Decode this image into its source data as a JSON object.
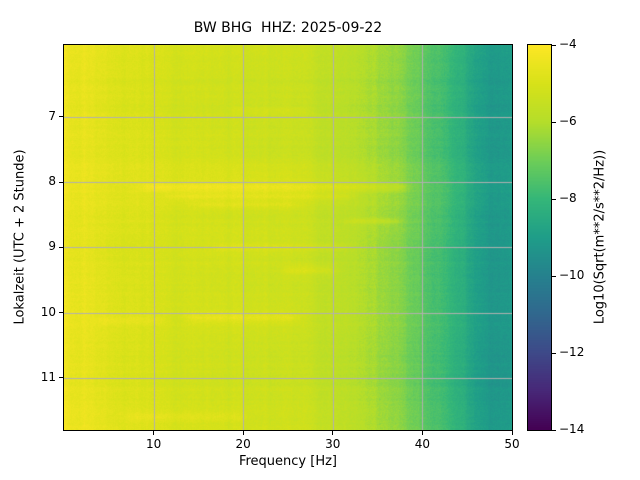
{
  "figure": {
    "background_color": "#ffffff",
    "text_color": "#000000"
  },
  "chart_data": {
    "type": "heatmap",
    "subtype": "spectrogram",
    "title": "BW BHG  HHZ: 2025-09-22",
    "xlabel": "Frequency [Hz]",
    "ylabel": "Lokalzeit (UTC + 2 Stunde)",
    "xlim": [
      0,
      50
    ],
    "time_range": [
      5.9,
      11.8
    ],
    "x_ticks": [
      10,
      20,
      30,
      40,
      50
    ],
    "y_ticks": [
      7,
      8,
      9,
      10,
      11
    ],
    "grid": true,
    "grid_color": "#b0b0b0",
    "colormap": "viridis",
    "viridis_stops": [
      "#440154",
      "#482878",
      "#3e4a89",
      "#31688e",
      "#26828e",
      "#1f9e89",
      "#35b779",
      "#6ece58",
      "#b5de2b",
      "#d8e219",
      "#fde725"
    ],
    "colorbar": {
      "label": "Log10(Sqrt(m**2/s**2/Hz))",
      "ticks": [
        -4,
        -6,
        -8,
        -10,
        -12,
        -14
      ],
      "vmin": -14,
      "vmax": -4
    },
    "value_grid": {
      "row_times": [
        6.0,
        6.5,
        7.0,
        7.5,
        8.0,
        8.5,
        9.0,
        9.5,
        10.0,
        10.5,
        11.0,
        11.5
      ],
      "col_freqs": [
        2.5,
        7.5,
        12.5,
        17.5,
        22.5,
        27.5,
        32.5,
        37.5,
        42.5,
        47.5
      ],
      "values": [
        [
          -4.5,
          -4.9,
          -5.0,
          -5.1,
          -5.2,
          -5.4,
          -5.8,
          -6.5,
          -7.8,
          -9.1
        ],
        [
          -4.6,
          -5.0,
          -5.1,
          -5.2,
          -5.3,
          -5.5,
          -5.9,
          -6.6,
          -7.9,
          -9.2
        ],
        [
          -4.6,
          -5.0,
          -5.1,
          -5.2,
          -5.3,
          -5.5,
          -5.9,
          -6.6,
          -7.9,
          -9.2
        ],
        [
          -4.6,
          -4.9,
          -5.0,
          -5.1,
          -5.3,
          -5.5,
          -5.9,
          -6.6,
          -7.9,
          -9.2
        ],
        [
          -4.5,
          -4.8,
          -4.8,
          -4.8,
          -4.9,
          -5.2,
          -5.6,
          -6.4,
          -7.7,
          -9.1
        ],
        [
          -4.6,
          -4.9,
          -5.0,
          -5.1,
          -5.2,
          -5.4,
          -5.8,
          -6.5,
          -7.8,
          -9.2
        ],
        [
          -4.6,
          -5.0,
          -5.0,
          -5.0,
          -5.1,
          -5.4,
          -5.8,
          -6.6,
          -7.9,
          -9.2
        ],
        [
          -4.6,
          -5.0,
          -5.1,
          -5.2,
          -5.3,
          -5.5,
          -5.9,
          -6.7,
          -8.0,
          -9.3
        ],
        [
          -4.5,
          -4.9,
          -5.0,
          -5.0,
          -5.1,
          -5.4,
          -5.8,
          -6.6,
          -7.9,
          -9.2
        ],
        [
          -4.6,
          -5.0,
          -5.1,
          -5.2,
          -5.3,
          -5.5,
          -5.9,
          -6.7,
          -8.0,
          -9.3
        ],
        [
          -4.6,
          -5.0,
          -5.1,
          -5.2,
          -5.3,
          -5.5,
          -5.9,
          -6.7,
          -8.0,
          -9.3
        ],
        [
          -4.5,
          -4.9,
          -5.0,
          -5.1,
          -5.2,
          -5.4,
          -5.8,
          -6.6,
          -7.9,
          -9.2
        ]
      ]
    },
    "events": [
      {
        "time": 8.08,
        "f_min": 9,
        "f_max": 38,
        "amp": 0.55,
        "half_height": 0.045
      },
      {
        "time": 8.22,
        "f_min": 12,
        "f_max": 32,
        "amp": 0.4,
        "half_height": 0.04
      },
      {
        "time": 8.35,
        "f_min": 15,
        "f_max": 26,
        "amp": 0.3,
        "half_height": 0.035
      },
      {
        "time": 8.6,
        "f_min": 32,
        "f_max": 37,
        "amp": 0.5,
        "half_height": 0.04
      },
      {
        "time": 9.0,
        "f_min": 17,
        "f_max": 32,
        "amp": 0.3,
        "half_height": 0.04
      },
      {
        "time": 9.35,
        "f_min": 25,
        "f_max": 30,
        "amp": 0.45,
        "half_height": 0.05
      },
      {
        "time": 10.08,
        "f_min": 14,
        "f_max": 26,
        "amp": 0.5,
        "half_height": 0.05
      },
      {
        "time": 10.12,
        "f_min": 4,
        "f_max": 11,
        "amp": 0.3,
        "half_height": 0.04
      },
      {
        "time": 11.6,
        "f_min": 7,
        "f_max": 20,
        "amp": 0.3,
        "half_height": 0.05
      },
      {
        "time": 6.9,
        "f_min": 19,
        "f_max": 27,
        "amp": 0.25,
        "half_height": 0.04
      }
    ]
  }
}
